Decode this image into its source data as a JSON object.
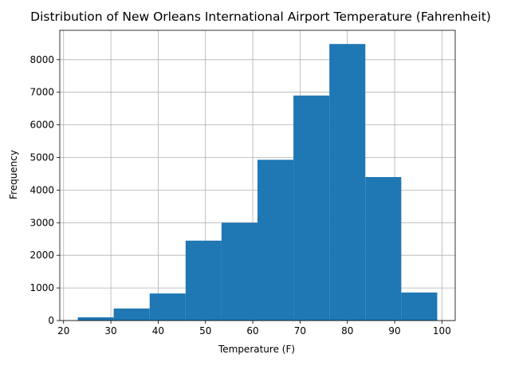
{
  "chart_data": {
    "type": "bar",
    "subtype": "histogram",
    "title": "Distribution of New Orleans International Airport Temperature (Fahrenheit)",
    "xlabel": "Temperature (F)",
    "ylabel": "Frequency",
    "xlim": [
      19.2,
      102.8
    ],
    "ylim": [
      0,
      8900
    ],
    "xticks": [
      20,
      30,
      40,
      50,
      60,
      70,
      80,
      90,
      100
    ],
    "yticks": [
      0,
      1000,
      2000,
      3000,
      4000,
      5000,
      6000,
      7000,
      8000
    ],
    "grid": true,
    "bar_color": "#1f77b4",
    "bins": [
      {
        "x0": 23.0,
        "x1": 30.6,
        "count": 100
      },
      {
        "x0": 30.6,
        "x1": 38.2,
        "count": 370
      },
      {
        "x0": 38.2,
        "x1": 45.8,
        "count": 830
      },
      {
        "x0": 45.8,
        "x1": 53.4,
        "count": 2450
      },
      {
        "x0": 53.4,
        "x1": 61.0,
        "count": 3000
      },
      {
        "x0": 61.0,
        "x1": 68.6,
        "count": 4930
      },
      {
        "x0": 68.6,
        "x1": 76.2,
        "count": 6900
      },
      {
        "x0": 76.2,
        "x1": 83.8,
        "count": 8480
      },
      {
        "x0": 83.8,
        "x1": 91.4,
        "count": 4400
      },
      {
        "x0": 91.4,
        "x1": 99.0,
        "count": 860
      }
    ]
  }
}
